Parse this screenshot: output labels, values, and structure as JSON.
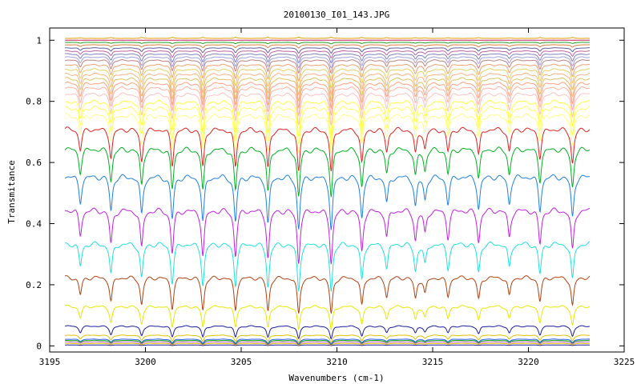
{
  "chart_data": {
    "type": "line",
    "title": "20100130_I01_143.JPG",
    "xlabel": "Wavenumbers (cm-1)",
    "ylabel": "Transmitance",
    "xlim": [
      3195,
      3225
    ],
    "ylim": [
      -0.02,
      1.04
    ],
    "x_range": [
      3195.8,
      3223.2
    ],
    "grid": false,
    "legend": "none",
    "xticks": [
      3195,
      3200,
      3205,
      3210,
      3215,
      3220,
      3225
    ],
    "xtick_labels": [
      "3195",
      "3200",
      "3205",
      "3210",
      "3215",
      "3220",
      "3225"
    ],
    "yticks": [
      0,
      0.2,
      0.4,
      0.6,
      0.8,
      1
    ],
    "ytick_labels": [
      "0",
      "0.2",
      "0.4",
      "0.6",
      "0.8",
      "1"
    ],
    "absorption_lines": [
      {
        "x": 3196.6,
        "depth": 0.55
      },
      {
        "x": 3198.2,
        "depth": 0.75
      },
      {
        "x": 3199.8,
        "depth": 0.85
      },
      {
        "x": 3201.4,
        "depth": 0.95
      },
      {
        "x": 3203.0,
        "depth": 1.0
      },
      {
        "x": 3204.7,
        "depth": 1.0
      },
      {
        "x": 3206.4,
        "depth": 1.05
      },
      {
        "x": 3208.0,
        "depth": 1.15
      },
      {
        "x": 3209.7,
        "depth": 1.15
      },
      {
        "x": 3211.3,
        "depth": 0.9
      },
      {
        "x": 3212.6,
        "depth": 0.6
      },
      {
        "x": 3214.1,
        "depth": 0.65
      },
      {
        "x": 3214.6,
        "depth": 0.5
      },
      {
        "x": 3215.8,
        "depth": 0.6
      },
      {
        "x": 3217.4,
        "depth": 0.7
      },
      {
        "x": 3219.0,
        "depth": 0.6
      },
      {
        "x": 3220.6,
        "depth": 0.75
      },
      {
        "x": 3222.3,
        "depth": 0.9
      }
    ],
    "series": [
      {
        "baseline": 0.003,
        "color": "#1a1aa0"
      },
      {
        "baseline": 0.008,
        "color": "#e0c000"
      },
      {
        "baseline": 0.013,
        "color": "#c060c0"
      },
      {
        "baseline": 0.018,
        "color": "#00a000"
      },
      {
        "baseline": 0.022,
        "color": "#3060ff"
      },
      {
        "baseline": 0.035,
        "color": "#e0c000"
      },
      {
        "baseline": 0.065,
        "color": "#1a1aa0"
      },
      {
        "baseline": 0.13,
        "color": "#e8e800"
      },
      {
        "baseline": 0.225,
        "color": "#b04010"
      },
      {
        "baseline": 0.335,
        "color": "#20e0e0"
      },
      {
        "baseline": 0.445,
        "color": "#c020e0"
      },
      {
        "baseline": 0.555,
        "color": "#2080e0"
      },
      {
        "baseline": 0.645,
        "color": "#00b020"
      },
      {
        "baseline": 0.71,
        "color": "#e02020"
      },
      {
        "baseline": 0.755,
        "color": "#ffff80"
      },
      {
        "baseline": 0.78,
        "color": "#ffff60"
      },
      {
        "baseline": 0.8,
        "color": "#ffff40"
      },
      {
        "baseline": 0.825,
        "color": "#ffc0c0"
      },
      {
        "baseline": 0.845,
        "color": "#ffb0a0"
      },
      {
        "baseline": 0.86,
        "color": "#ffa080"
      },
      {
        "baseline": 0.875,
        "color": "#e0c060"
      },
      {
        "baseline": 0.89,
        "color": "#ffb080"
      },
      {
        "baseline": 0.905,
        "color": "#e0d060"
      },
      {
        "baseline": 0.92,
        "color": "#f0a070"
      },
      {
        "baseline": 0.935,
        "color": "#c08080"
      },
      {
        "baseline": 0.945,
        "color": "#a0a0e0"
      },
      {
        "baseline": 0.955,
        "color": "#8080c0"
      },
      {
        "baseline": 0.965,
        "color": "#c060a0"
      },
      {
        "baseline": 0.975,
        "color": "#6060a0"
      },
      {
        "baseline": 0.985,
        "color": "#e08040"
      },
      {
        "baseline": 0.993,
        "color": "#20a020"
      },
      {
        "baseline": 1.0,
        "color": "#c02060"
      },
      {
        "baseline": 1.006,
        "color": "#e0a000"
      }
    ]
  }
}
